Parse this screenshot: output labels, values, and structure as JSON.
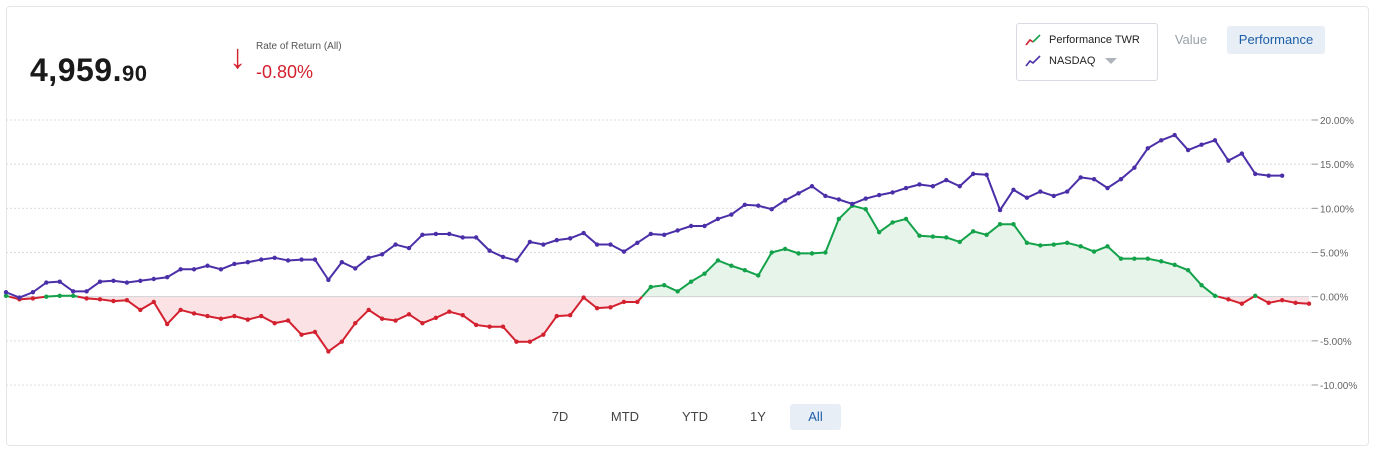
{
  "header": {
    "value_main": "4,959.",
    "value_cents": "90",
    "ror_arrow": "↓",
    "ror_label": "Rate of Return (All)",
    "ror_value": "-0.80%"
  },
  "legend": {
    "items": [
      {
        "label": "Performance TWR",
        "icon": "trend-line-icon-red-green"
      },
      {
        "label": "NASDAQ",
        "icon": "trend-line-icon-purple"
      }
    ]
  },
  "view_toggle": {
    "value_label": "Value",
    "performance_label": "Performance",
    "selected": "Performance"
  },
  "range_buttons": {
    "items": [
      "7D",
      "MTD",
      "YTD",
      "1Y",
      "All"
    ],
    "selected": "All"
  },
  "colors": {
    "twr_positive": "#13a24a",
    "twr_negative": "#d3212f",
    "nasdaq": "#4b2fa8",
    "fill_positive": "#e6f4ea",
    "fill_negative": "#fbe3e5",
    "grid": "#d9dce1",
    "axis_text": "#666666"
  },
  "chart_data": {
    "type": "line",
    "ylim": [
      -10,
      20
    ],
    "yticks": [
      {
        "value": 20,
        "label": "20.00%"
      },
      {
        "value": 15,
        "label": "15.00%"
      },
      {
        "value": 10,
        "label": "10.00%"
      },
      {
        "value": 5,
        "label": "5.00%"
      },
      {
        "value": 0,
        "label": "0.00%"
      },
      {
        "value": -5,
        "label": "-5.00%"
      },
      {
        "value": -10,
        "label": "-10.00%"
      }
    ],
    "grid": true,
    "legend_position": "top-right",
    "series": [
      {
        "name": "Performance TWR",
        "values": [
          0.1,
          -0.3,
          -0.2,
          0.0,
          0.1,
          0.1,
          -0.2,
          -0.3,
          -0.5,
          -0.4,
          -1.5,
          -0.6,
          -3.1,
          -1.5,
          -1.9,
          -2.2,
          -2.5,
          -2.2,
          -2.6,
          -2.2,
          -3.0,
          -2.7,
          -4.3,
          -4.0,
          -6.2,
          -5.1,
          -3.0,
          -1.5,
          -2.5,
          -2.7,
          -2.0,
          -3.0,
          -2.4,
          -1.7,
          -2.1,
          -3.2,
          -3.4,
          -3.4,
          -5.1,
          -5.1,
          -4.3,
          -2.2,
          -2.1,
          -0.1,
          -1.3,
          -1.2,
          -0.6,
          -0.6,
          1.1,
          1.3,
          0.6,
          1.7,
          2.6,
          4.1,
          3.5,
          3.0,
          2.4,
          5.0,
          5.4,
          4.9,
          4.9,
          5.0,
          8.8,
          10.3,
          9.9,
          7.3,
          8.4,
          8.8,
          6.9,
          6.8,
          6.7,
          6.2,
          7.4,
          7.0,
          8.2,
          8.2,
          6.1,
          5.8,
          5.9,
          6.1,
          5.7,
          5.1,
          5.7,
          4.3,
          4.3,
          4.3,
          4.0,
          3.6,
          3.0,
          1.3,
          0.1,
          -0.3,
          -0.8,
          0.1,
          -0.7,
          -0.4,
          -0.7,
          -0.8
        ]
      },
      {
        "name": "NASDAQ",
        "values": [
          0.5,
          -0.1,
          0.5,
          1.6,
          1.7,
          0.6,
          0.6,
          1.7,
          1.8,
          1.6,
          1.8,
          2.0,
          2.2,
          3.1,
          3.1,
          3.5,
          3.1,
          3.7,
          3.9,
          4.2,
          4.4,
          4.1,
          4.2,
          4.2,
          1.9,
          3.9,
          3.2,
          4.4,
          4.8,
          5.9,
          5.5,
          7.0,
          7.1,
          7.1,
          6.7,
          6.7,
          5.2,
          4.5,
          4.1,
          6.2,
          5.9,
          6.4,
          6.6,
          7.2,
          5.9,
          5.9,
          5.1,
          6.1,
          7.1,
          7.0,
          7.5,
          8.0,
          8.0,
          8.8,
          9.3,
          10.4,
          10.3,
          9.9,
          10.9,
          11.7,
          12.5,
          11.4,
          11.0,
          10.5,
          11.1,
          11.5,
          11.8,
          12.3,
          12.7,
          12.5,
          13.2,
          12.5,
          13.9,
          13.8,
          9.8,
          12.1,
          11.2,
          11.9,
          11.4,
          11.9,
          13.5,
          13.3,
          12.3,
          13.3,
          14.6,
          16.8,
          17.7,
          18.3,
          16.6,
          17.2,
          17.7,
          15.4,
          16.2,
          13.9,
          13.7,
          13.7
        ]
      }
    ]
  }
}
